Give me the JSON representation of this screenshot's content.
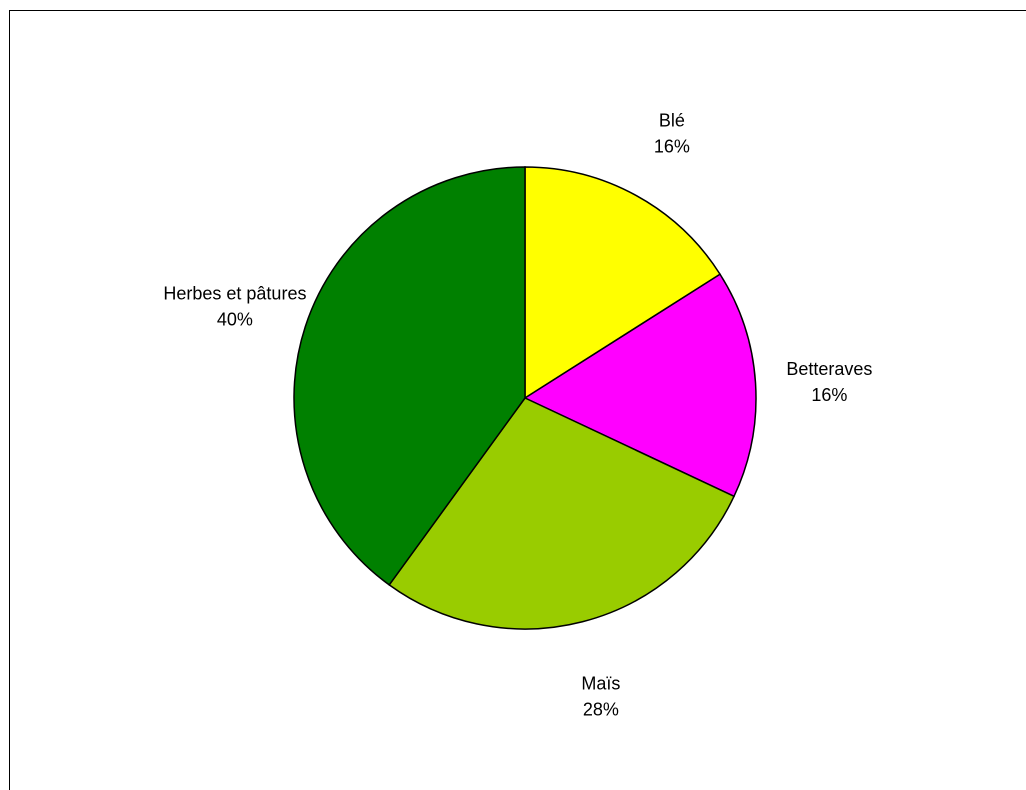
{
  "chart_data": {
    "type": "pie",
    "start_angle_deg": 0,
    "direction": "clockwise",
    "slices": [
      {
        "label": "Blé",
        "percent_label": "16%",
        "value": 16,
        "color": "#ffff00"
      },
      {
        "label": "Betteraves",
        "percent_label": "16%",
        "value": 16,
        "color": "#ff00ff"
      },
      {
        "label": "Maïs",
        "percent_label": "28%",
        "value": 28,
        "color": "#99cc00"
      },
      {
        "label": "Herbes et pâtures",
        "percent_label": "40%",
        "value": 40,
        "color": "#008000"
      }
    ],
    "border_color": "#000000"
  }
}
